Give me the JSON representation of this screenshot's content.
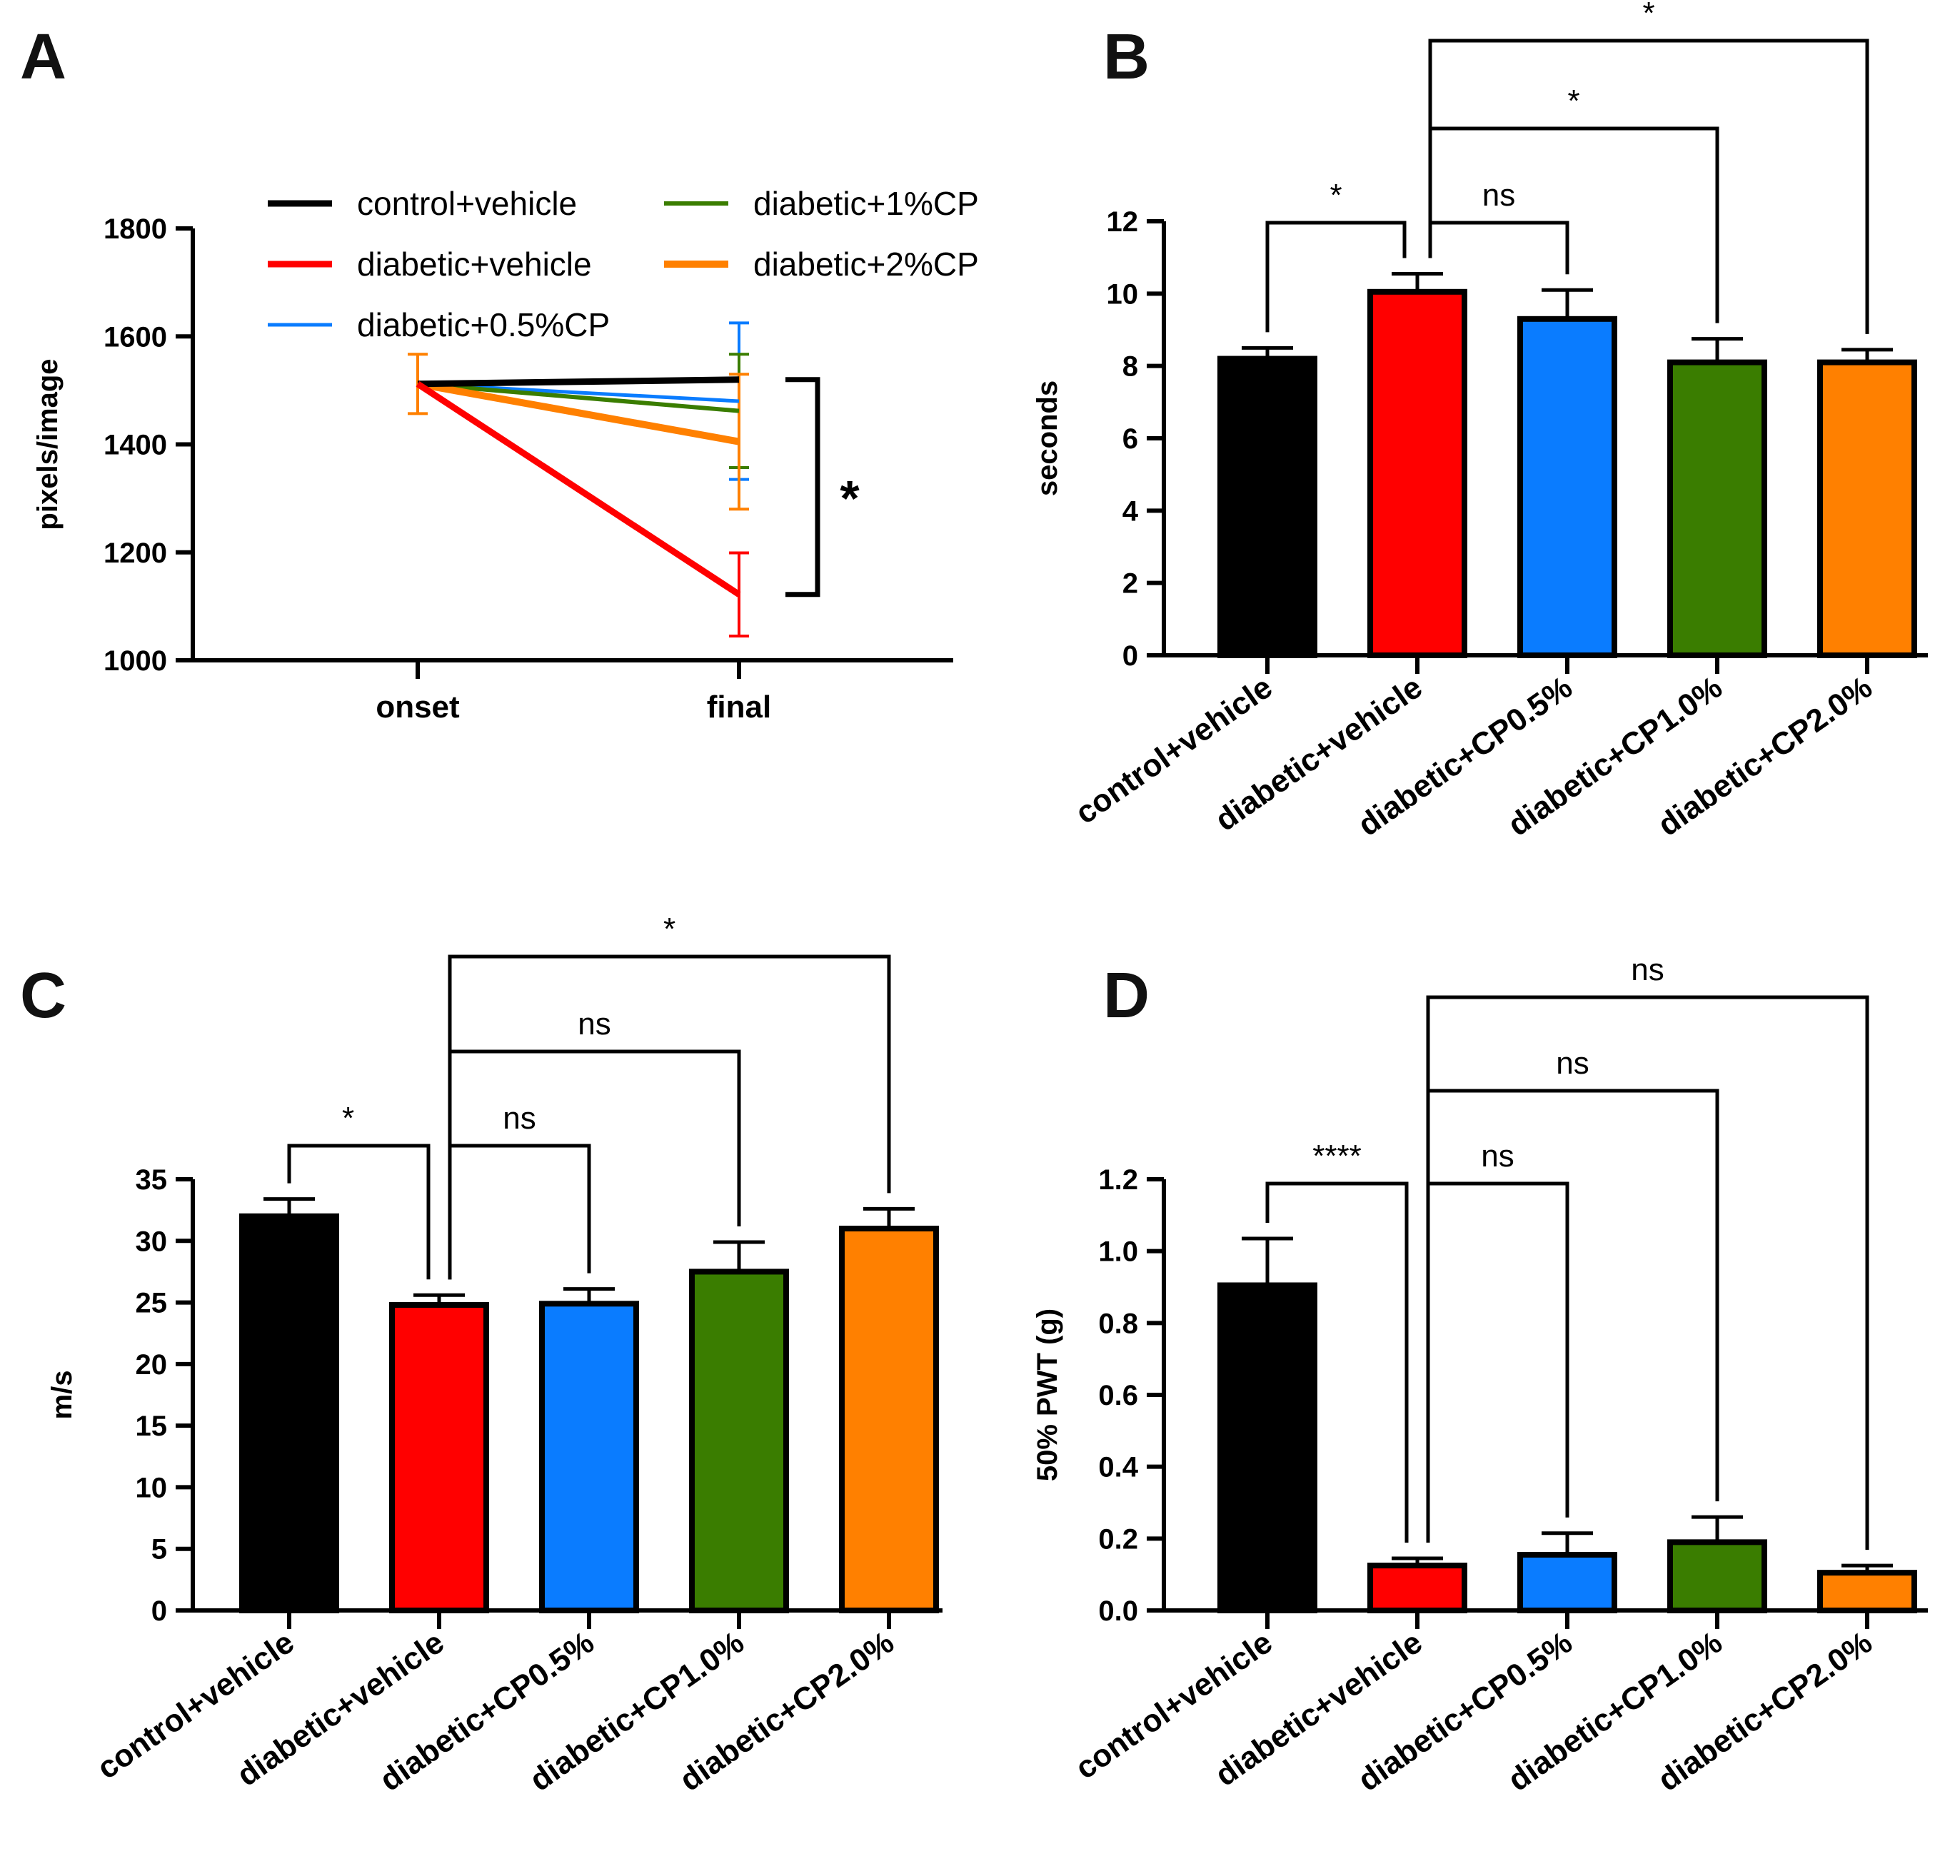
{
  "colors": {
    "control_vehicle": "#000000",
    "diabetic_vehicle": "#ff0000",
    "cp05": "#0a7cff",
    "cp10": "#3a7d00",
    "cp20": "#ff8000"
  },
  "chart_data": [
    {
      "panel": "A",
      "type": "line",
      "title": "",
      "xlabel": "",
      "ylabel": "pixels/image",
      "x": [
        "onset",
        "final"
      ],
      "ylim": [
        1000,
        1800
      ],
      "yticks": [
        "1000",
        "1200",
        "1400",
        "1600",
        "1800"
      ],
      "grid": false,
      "legend_position": "top",
      "series": [
        {
          "name": "control+vehicle",
          "color": "#000000",
          "values": [
            1512,
            1520
          ],
          "errors": [
            55,
            0
          ]
        },
        {
          "name": "diabetic+vehicle",
          "color": "#ff0000",
          "values": [
            1512,
            1122
          ],
          "errors": [
            55,
            77
          ]
        },
        {
          "name": "diabetic+0.5%CP",
          "color": "#0a7cff",
          "values": [
            1512,
            1480
          ],
          "errors": [
            55,
            145
          ]
        },
        {
          "name": "diabetic+1%CP",
          "color": "#3a7d00",
          "values": [
            1512,
            1462
          ],
          "errors": [
            55,
            105
          ]
        },
        {
          "name": "diabetic+2%CP",
          "color": "#ff8000",
          "values": [
            1512,
            1405
          ],
          "errors": [
            55,
            125
          ]
        }
      ],
      "significance": [
        {
          "label": "*",
          "from": 1520,
          "to": 1122
        }
      ]
    },
    {
      "panel": "B",
      "type": "bar",
      "title": "",
      "xlabel": "",
      "ylabel": "seconds",
      "categories": [
        "control+vehicle",
        "diabetic+vehicle",
        "diabetic+CP0.5%",
        "diabetic+CP1.0%",
        "diabetic+CP2.0%"
      ],
      "values": [
        8.2,
        10.05,
        9.3,
        8.1,
        8.1
      ],
      "errors": [
        0.3,
        0.5,
        0.8,
        0.65,
        0.35
      ],
      "ylim": [
        0,
        12
      ],
      "yticks": [
        "0",
        "2",
        "4",
        "6",
        "8",
        "10",
        "12"
      ],
      "grid": false,
      "significance": [
        {
          "label": "*",
          "a": 0,
          "b": 1
        },
        {
          "label": "ns",
          "a": 1,
          "b": 2
        },
        {
          "label": "*",
          "a": 1,
          "b": 3
        },
        {
          "label": "*",
          "a": 1,
          "b": 4
        }
      ]
    },
    {
      "panel": "C",
      "type": "bar",
      "title": "",
      "xlabel": "",
      "ylabel": "m/s",
      "categories": [
        "control+vehicle",
        "diabetic+vehicle",
        "diabetic+CP0.5%",
        "diabetic+CP1.0%",
        "diabetic+CP2.0%"
      ],
      "values": [
        32.0,
        24.8,
        24.9,
        27.5,
        31.0
      ],
      "errors": [
        1.4,
        0.8,
        1.2,
        2.4,
        1.6
      ],
      "ylim": [
        0,
        35
      ],
      "yticks": [
        "0",
        "5",
        "10",
        "15",
        "20",
        "25",
        "30",
        "35"
      ],
      "grid": false,
      "significance": [
        {
          "label": "*",
          "a": 0,
          "b": 1
        },
        {
          "label": "ns",
          "a": 1,
          "b": 2
        },
        {
          "label": "ns",
          "a": 1,
          "b": 3
        },
        {
          "label": "*",
          "a": 1,
          "b": 4
        }
      ]
    },
    {
      "panel": "D",
      "type": "bar",
      "title": "",
      "xlabel": "",
      "ylabel": "50% PWT (g)",
      "categories": [
        "control+vehicle",
        "diabetic+vehicle",
        "diabetic+CP0.5%",
        "diabetic+CP1.0%",
        "diabetic+CP2.0%"
      ],
      "values": [
        0.905,
        0.125,
        0.155,
        0.19,
        0.105
      ],
      "errors": [
        0.13,
        0.02,
        0.06,
        0.07,
        0.02
      ],
      "ylim": [
        0,
        1.2
      ],
      "yticks": [
        "0.0",
        "0.2",
        "0.4",
        "0.6",
        "0.8",
        "1.0",
        "1.2"
      ],
      "grid": false,
      "significance": [
        {
          "label": "****",
          "a": 0,
          "b": 1
        },
        {
          "label": "ns",
          "a": 1,
          "b": 2
        },
        {
          "label": "ns",
          "a": 1,
          "b": 3
        },
        {
          "label": "ns",
          "a": 1,
          "b": 4
        }
      ]
    }
  ]
}
